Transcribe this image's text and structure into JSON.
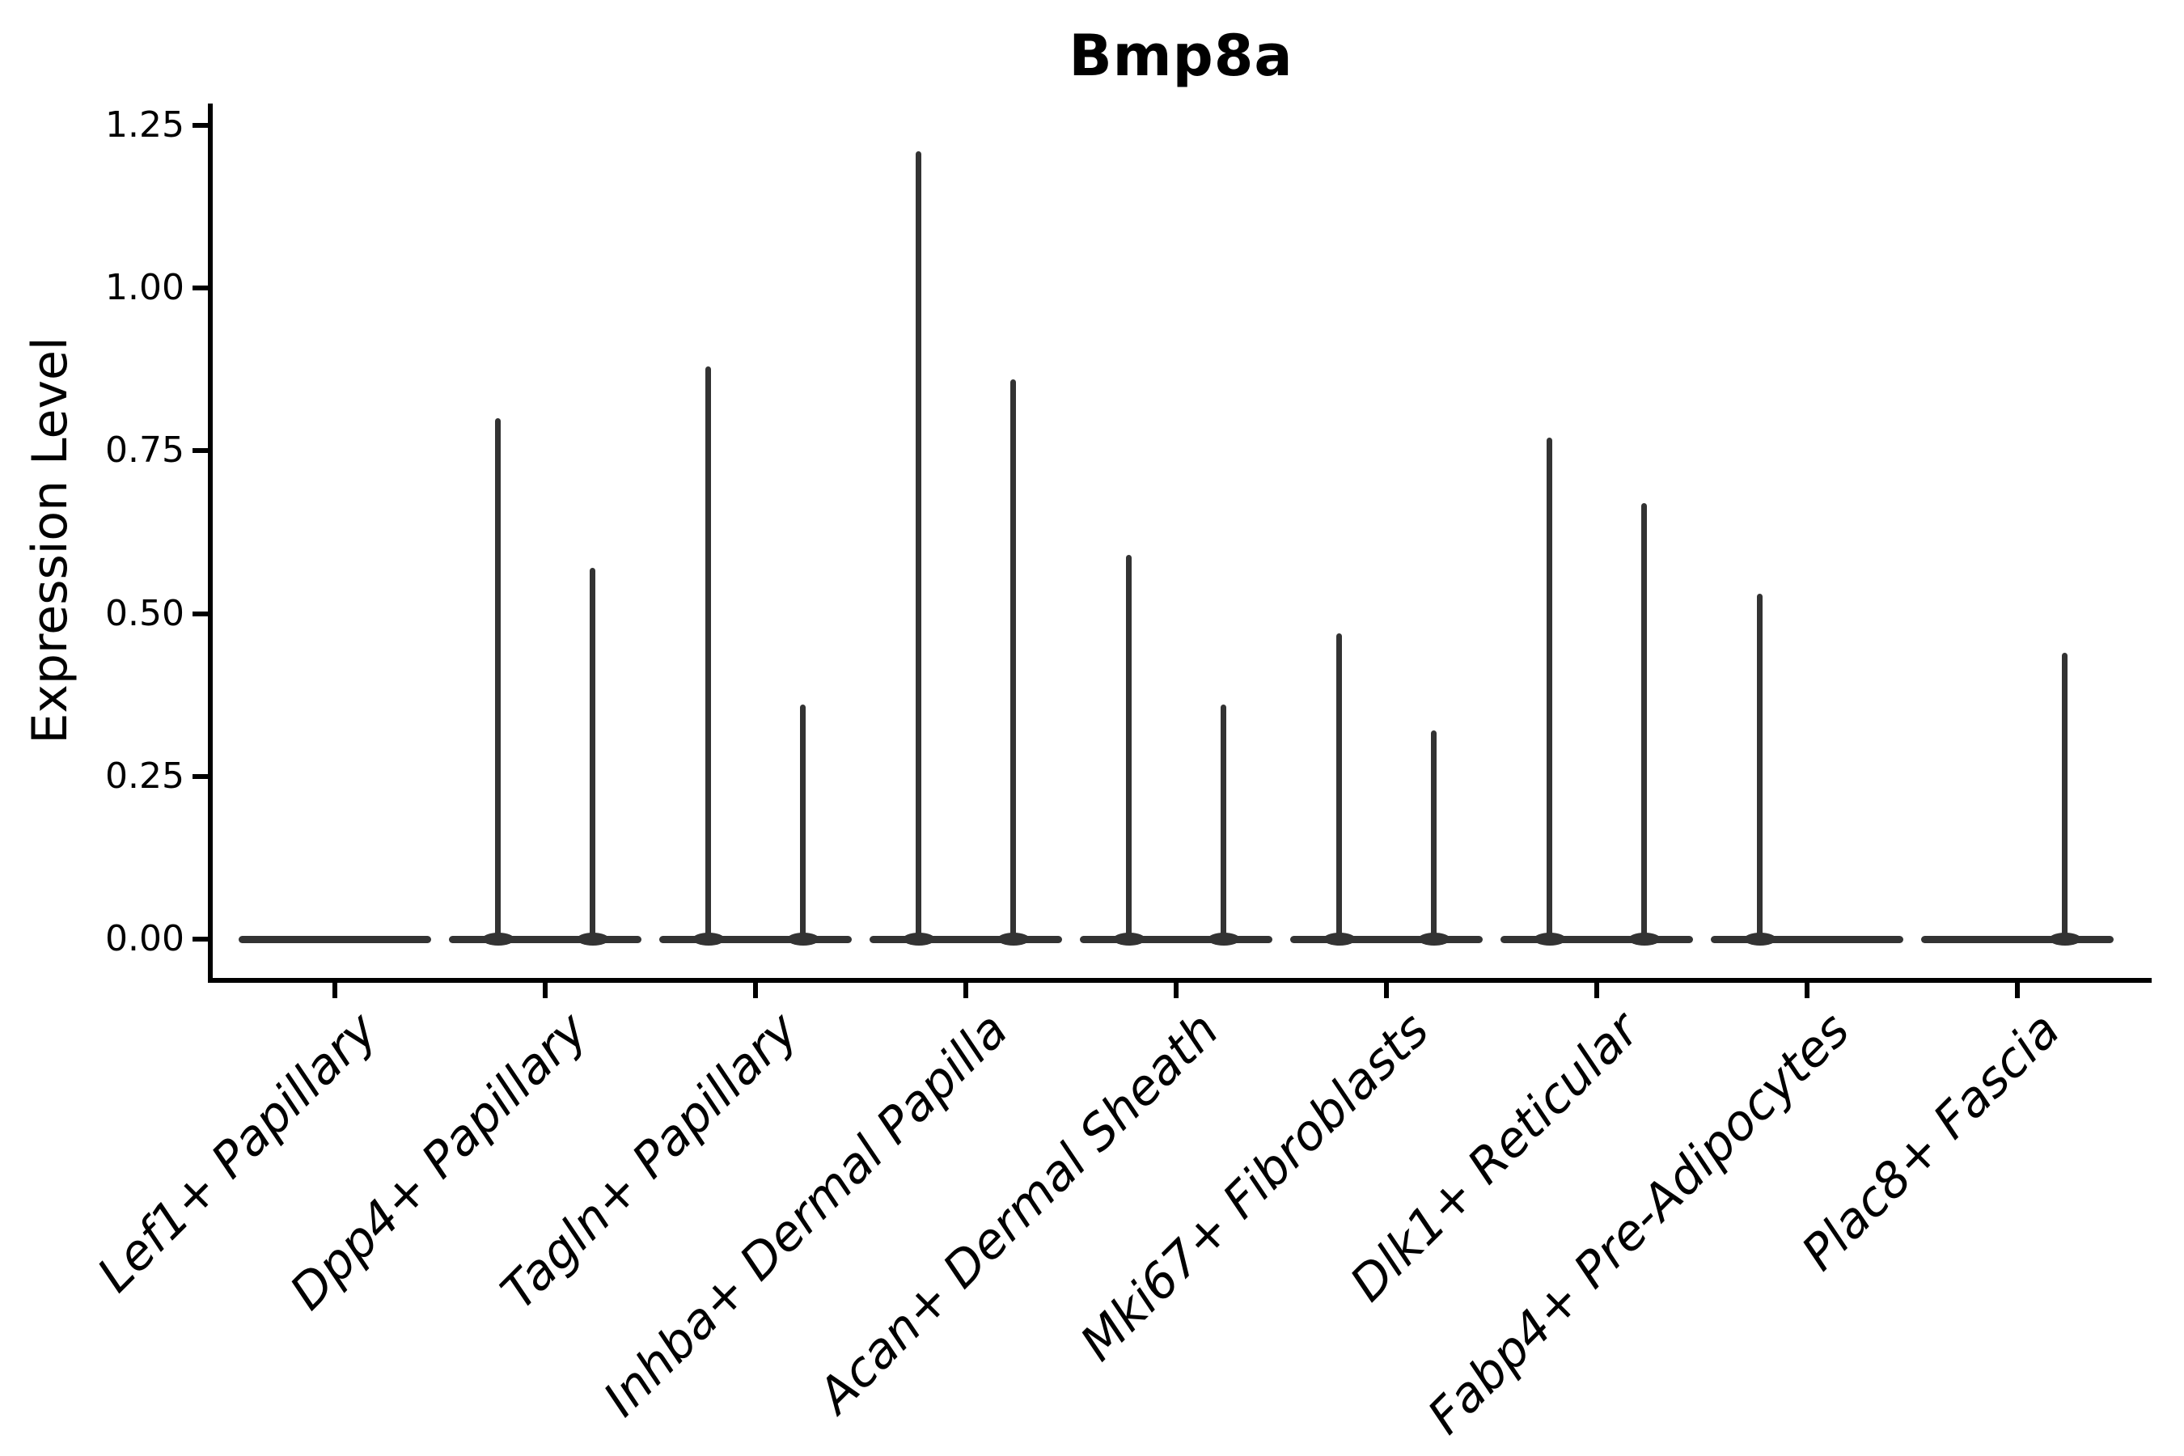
{
  "chart_data": {
    "type": "violin",
    "title": "Bmp8a",
    "xlabel": "",
    "ylabel": "Expression Level",
    "ylim": [
      0,
      1.25
    ],
    "ytick_labels": [
      "0.00",
      "0.25",
      "0.50",
      "0.75",
      "1.00",
      "1.25"
    ],
    "ytick_values": [
      0.0,
      0.25,
      0.5,
      0.75,
      1.0,
      1.25
    ],
    "grid": false,
    "legend_position": "none",
    "violin_color": "#333333",
    "axis_color": "#000000",
    "text_color": "#000000",
    "description": "Very thin split violins: each category shows a flat density bar at expression 0 with up to two narrow spikes (left/right split violin) reaching the listed maximum expression value.",
    "categories": [
      "Lef1+ Papillary",
      "Dpp4+ Papillary",
      "Tagln+ Papillary",
      "Inhba+ Dermal Papilla",
      "Acan+ Dermal Sheath",
      "Mki67+ Fibroblasts",
      "Dlk1+ Reticular",
      "Fabp4+ Pre-Adipocytes",
      "Plac8+ Fascia"
    ],
    "violins": [
      {
        "category": "Lef1+ Papillary",
        "spikes": []
      },
      {
        "category": "Dpp4+ Papillary",
        "spikes": [
          {
            "side": "left",
            "max": 0.8
          },
          {
            "side": "right",
            "max": 0.57
          }
        ]
      },
      {
        "category": "Tagln+ Papillary",
        "spikes": [
          {
            "side": "left",
            "max": 0.88
          },
          {
            "side": "right",
            "max": 0.36
          }
        ]
      },
      {
        "category": "Inhba+ Dermal Papilla",
        "spikes": [
          {
            "side": "left",
            "max": 1.21
          },
          {
            "side": "right",
            "max": 0.86
          }
        ]
      },
      {
        "category": "Acan+ Dermal Sheath",
        "spikes": [
          {
            "side": "left",
            "max": 0.59
          },
          {
            "side": "right",
            "max": 0.36
          }
        ]
      },
      {
        "category": "Mki67+ Fibroblasts",
        "spikes": [
          {
            "side": "left",
            "max": 0.47
          },
          {
            "side": "right",
            "max": 0.32
          }
        ]
      },
      {
        "category": "Dlk1+ Reticular",
        "spikes": [
          {
            "side": "left",
            "max": 0.77
          },
          {
            "side": "right",
            "max": 0.67
          }
        ]
      },
      {
        "category": "Fabp4+ Pre-Adipocytes",
        "spikes": [
          {
            "side": "left",
            "max": 0.53
          }
        ]
      },
      {
        "category": "Plac8+ Fascia",
        "spikes": [
          {
            "side": "right",
            "max": 0.44
          }
        ]
      }
    ]
  }
}
